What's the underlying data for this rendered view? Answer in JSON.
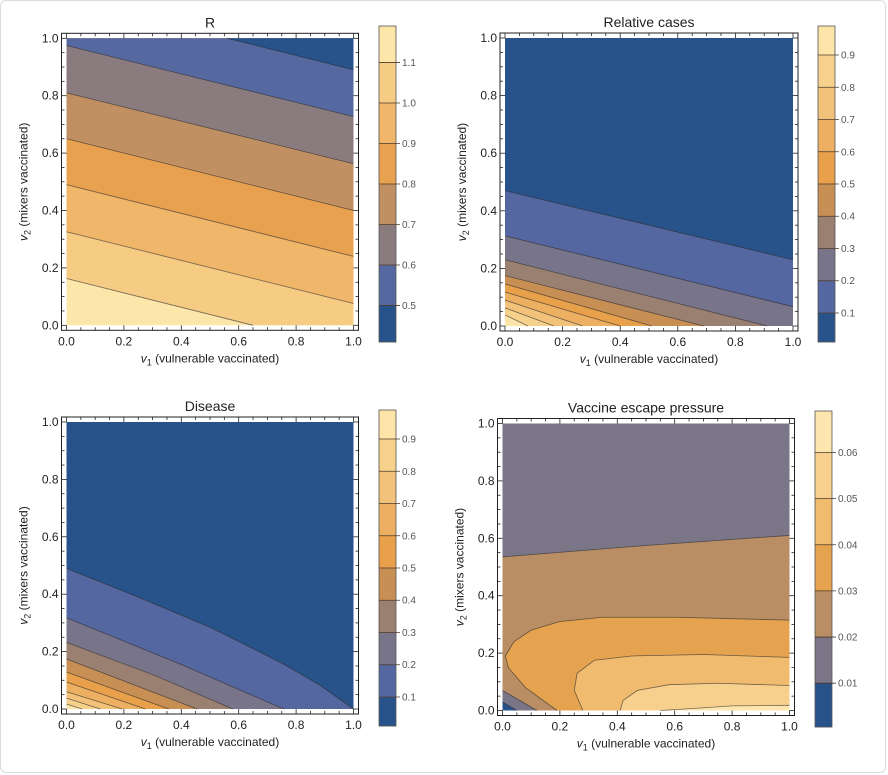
{
  "chart_data": [
    {
      "type": "contour",
      "title": "R",
      "xlabel": {
        "var": "v",
        "sub": "1",
        "text": " (vulnerable vaccinated)"
      },
      "ylabel": {
        "var": "v",
        "sub": "2",
        "text": " (mixers vaccinated)"
      },
      "xlim": [
        0,
        1
      ],
      "ylim": [
        0,
        1
      ],
      "xticks": [
        "0.0",
        "0.2",
        "0.4",
        "0.6",
        "0.8",
        "1.0"
      ],
      "yticks": [
        "0.0",
        "0.2",
        "0.4",
        "0.6",
        "0.8",
        "1.0"
      ],
      "band_bounds": [
        0.4,
        0.5,
        0.6,
        0.7,
        0.8,
        0.9,
        1.0,
        1.1,
        1.2
      ],
      "band_colors": [
        "#27528a",
        "#5668a0",
        "#8a7c7e",
        "#c08f62",
        "#e8a24f",
        "#f0b66a",
        "#f6cc84",
        "#fde6aa"
      ],
      "colorbar_range": [
        0.41,
        1.19
      ],
      "colorbar_ticks": [
        "0.5",
        "0.6",
        "0.7",
        "0.8",
        "0.9",
        "1.0",
        "1.1"
      ],
      "base_band": 7,
      "contours": [
        {
          "level": 1.1,
          "band": 6,
          "points": [
            [
              0,
              0.163
            ],
            [
              0.65,
              0
            ]
          ]
        },
        {
          "level": 1.0,
          "band": 5,
          "points": [
            [
              0,
              0.326
            ],
            [
              1,
              0.076
            ]
          ]
        },
        {
          "level": 0.9,
          "band": 4,
          "points": [
            [
              0,
              0.49
            ],
            [
              1,
              0.24
            ]
          ]
        },
        {
          "level": 0.8,
          "band": 3,
          "points": [
            [
              0,
              0.65
            ],
            [
              1,
              0.4
            ]
          ]
        },
        {
          "level": 0.7,
          "band": 2,
          "points": [
            [
              0,
              0.81
            ],
            [
              1,
              0.563
            ]
          ]
        },
        {
          "level": 0.6,
          "band": 1,
          "points": [
            [
              0,
              0.975
            ],
            [
              1,
              0.727
            ]
          ]
        },
        {
          "level": 0.5,
          "band": 0,
          "points": [
            [
              0.56,
              1
            ],
            [
              1,
              0.89
            ]
          ]
        }
      ]
    },
    {
      "type": "contour",
      "title": "Relative cases",
      "xlabel": {
        "var": "v",
        "sub": "1",
        "text": " (vulnerable vaccinated)"
      },
      "ylabel": {
        "var": "v",
        "sub": "2",
        "text": " (mixers vaccinated)"
      },
      "xlim": [
        0,
        1
      ],
      "ylim": [
        0,
        1
      ],
      "xticks": [
        "0.0",
        "0.2",
        "0.4",
        "0.6",
        "0.8",
        "1.0"
      ],
      "yticks": [
        "0.0",
        "0.2",
        "0.4",
        "0.6",
        "0.8",
        "1.0"
      ],
      "band_bounds": [
        0,
        0.1,
        0.2,
        0.3,
        0.4,
        0.5,
        0.6,
        0.7,
        0.8,
        0.9,
        1.0
      ],
      "band_colors": [
        "#27538a",
        "#5567a0",
        "#78748a",
        "#9a8070",
        "#c88f55",
        "#e8a04a",
        "#edb063",
        "#f2c27a",
        "#f6d18c",
        "#fde4a8"
      ],
      "colorbar_range": [
        0.01,
        0.99
      ],
      "colorbar_ticks": [
        "0.1",
        "0.2",
        "0.3",
        "0.4",
        "0.5",
        "0.6",
        "0.7",
        "0.8",
        "0.9"
      ],
      "base_band": 9,
      "contours": [
        {
          "level": 0.9,
          "band": 8,
          "points": [
            [
              0,
              0.038
            ],
            [
              0.08,
              0
            ]
          ]
        },
        {
          "level": 0.8,
          "band": 7,
          "points": [
            [
              0,
              0.063
            ],
            [
              0.17,
              0
            ]
          ]
        },
        {
          "level": 0.7,
          "band": 6,
          "points": [
            [
              0,
              0.09
            ],
            [
              0.27,
              0
            ]
          ]
        },
        {
          "level": 0.6,
          "band": 5,
          "points": [
            [
              0,
              0.118
            ],
            [
              0.4,
              0
            ]
          ]
        },
        {
          "level": 0.5,
          "band": 4,
          "points": [
            [
              0,
              0.146
            ],
            [
              0.51,
              0
            ]
          ]
        },
        {
          "level": 0.4,
          "band": 3,
          "points": [
            [
              0,
              0.175
            ],
            [
              0.69,
              0
            ]
          ]
        },
        {
          "level": 0.3,
          "band": 2,
          "points": [
            [
              0,
              0.23
            ],
            [
              0.91,
              0
            ]
          ]
        },
        {
          "level": 0.2,
          "band": 1,
          "points": [
            [
              0,
              0.313
            ],
            [
              1,
              0.067
            ]
          ]
        },
        {
          "level": 0.1,
          "band": 0,
          "points": [
            [
              0,
              0.47
            ],
            [
              1,
              0.23
            ]
          ]
        }
      ]
    },
    {
      "type": "contour",
      "title": "Disease",
      "xlabel": {
        "var": "v",
        "sub": "1",
        "text": " (vulnerable vaccinated)"
      },
      "ylabel": {
        "var": "v",
        "sub": "2",
        "text": " (mixers vaccinated)"
      },
      "xlim": [
        0,
        1
      ],
      "ylim": [
        0,
        1
      ],
      "xticks": [
        "0.0",
        "0.2",
        "0.4",
        "0.6",
        "0.8",
        "1.0"
      ],
      "yticks": [
        "0.0",
        "0.2",
        "0.4",
        "0.6",
        "0.8",
        "1.0"
      ],
      "band_bounds": [
        0,
        0.1,
        0.2,
        0.3,
        0.4,
        0.5,
        0.6,
        0.7,
        0.8,
        0.9,
        1.0
      ],
      "band_colors": [
        "#27538a",
        "#5567a0",
        "#78748a",
        "#9a8070",
        "#c88f55",
        "#e8a04a",
        "#edb063",
        "#f2c27a",
        "#f6d18c",
        "#fde4a8"
      ],
      "colorbar_range": [
        0.01,
        0.99
      ],
      "colorbar_ticks": [
        "0.1",
        "0.2",
        "0.3",
        "0.4",
        "0.5",
        "0.6",
        "0.7",
        "0.8",
        "0.9"
      ],
      "base_band": 9,
      "contours": [
        {
          "level": 0.9,
          "band": 8,
          "points": [
            [
              0,
              0.017
            ],
            [
              0.055,
              0
            ]
          ]
        },
        {
          "level": 0.8,
          "band": 7,
          "points": [
            [
              0,
              0.038
            ],
            [
              0.118,
              0
            ]
          ]
        },
        {
          "level": 0.7,
          "band": 6,
          "points": [
            [
              0,
              0.06
            ],
            [
              0.194,
              0
            ]
          ]
        },
        {
          "level": 0.6,
          "band": 5,
          "points": [
            [
              0,
              0.094
            ],
            [
              0.275,
              0
            ]
          ]
        },
        {
          "level": 0.5,
          "band": 4,
          "points": [
            [
              0,
              0.129
            ],
            [
              0.356,
              0
            ]
          ]
        },
        {
          "level": 0.4,
          "band": 3,
          "points": [
            [
              0,
              0.174
            ],
            [
              0.455,
              0
            ]
          ]
        },
        {
          "level": 0.3,
          "band": 2,
          "points": [
            [
              0,
              0.232
            ],
            [
              0.3,
              0.12
            ],
            [
              0.58,
              0
            ]
          ]
        },
        {
          "level": 0.2,
          "band": 1,
          "points": [
            [
              0,
              0.318
            ],
            [
              0.4,
              0.155
            ],
            [
              0.757,
              0
            ]
          ]
        },
        {
          "level": 0.1,
          "band": 0,
          "points": [
            [
              0,
              0.49
            ],
            [
              0.25,
              0.39
            ],
            [
              0.5,
              0.285
            ],
            [
              0.75,
              0.16
            ],
            [
              0.88,
              0.085
            ],
            [
              1,
              0
            ]
          ]
        }
      ]
    },
    {
      "type": "contour",
      "title": "Vaccine escape pressure",
      "xlabel": {
        "var": "v",
        "sub": "1",
        "text": " (vulnerable vaccinated)"
      },
      "ylabel": {
        "var": "v",
        "sub": "2",
        "text": " (mixers vaccinated)"
      },
      "xlim": [
        0,
        1
      ],
      "ylim": [
        0,
        1
      ],
      "xticks": [
        "0.0",
        "0.2",
        "0.4",
        "0.6",
        "0.8",
        "1.0"
      ],
      "yticks": [
        "0.0",
        "0.2",
        "0.4",
        "0.6",
        "0.8",
        "1.0"
      ],
      "band_bounds": [
        0,
        0.01,
        0.02,
        0.03,
        0.04,
        0.05,
        0.06,
        0.07
      ],
      "band_colors": [
        "#27538a",
        "#7a7688",
        "#b98e64",
        "#e6a34f",
        "#f0bb6e",
        "#f6d08c",
        "#fde7ae"
      ],
      "colorbar_range": [
        0.0005,
        0.069
      ],
      "colorbar_ticks": [
        "0.01",
        "0.02",
        "0.03",
        "0.04",
        "0.05",
        "0.06"
      ],
      "base_band": 1,
      "contours": [
        {
          "level": 0.02,
          "band": 2,
          "points": [
            [
              1,
              0.61
            ],
            [
              0.5,
              0.575
            ],
            [
              0,
              0.535
            ]
          ]
        },
        {
          "level": 0.03,
          "band": 3,
          "points": [
            [
              1,
              0.315
            ],
            [
              0.6,
              0.325
            ],
            [
              0.35,
              0.325
            ],
            [
              0.2,
              0.31
            ],
            [
              0.1,
              0.28
            ],
            [
              0.04,
              0.24
            ],
            [
              0.01,
              0.19
            ],
            [
              0.02,
              0.15
            ],
            [
              0.08,
              0.08
            ],
            [
              0.19,
              0
            ]
          ]
        },
        {
          "level": 0.04,
          "band": 4,
          "points": [
            [
              1,
              0.185
            ],
            [
              0.7,
              0.195
            ],
            [
              0.45,
              0.19
            ],
            [
              0.32,
              0.175
            ],
            [
              0.26,
              0.13
            ],
            [
              0.25,
              0.07
            ],
            [
              0.28,
              0
            ]
          ]
        },
        {
          "level": 0.05,
          "band": 5,
          "points": [
            [
              1,
              0.087
            ],
            [
              0.75,
              0.095
            ],
            [
              0.58,
              0.09
            ],
            [
              0.47,
              0.07
            ],
            [
              0.42,
              0.035
            ],
            [
              0.41,
              0
            ]
          ]
        },
        {
          "level": 0.06,
          "band": 6,
          "points": [
            [
              1,
              0.018
            ],
            [
              0.8,
              0.016
            ],
            [
              0.65,
              0.006
            ],
            [
              0.55,
              0
            ]
          ]
        },
        {
          "level": 0.02,
          "band": 1,
          "points": [
            [
              0.12,
              0
            ],
            [
              0,
              0.07
            ]
          ]
        },
        {
          "level": 0.01,
          "band": 0,
          "points": [
            [
              0.05,
              0
            ],
            [
              0,
              0.03
            ]
          ]
        }
      ]
    }
  ]
}
